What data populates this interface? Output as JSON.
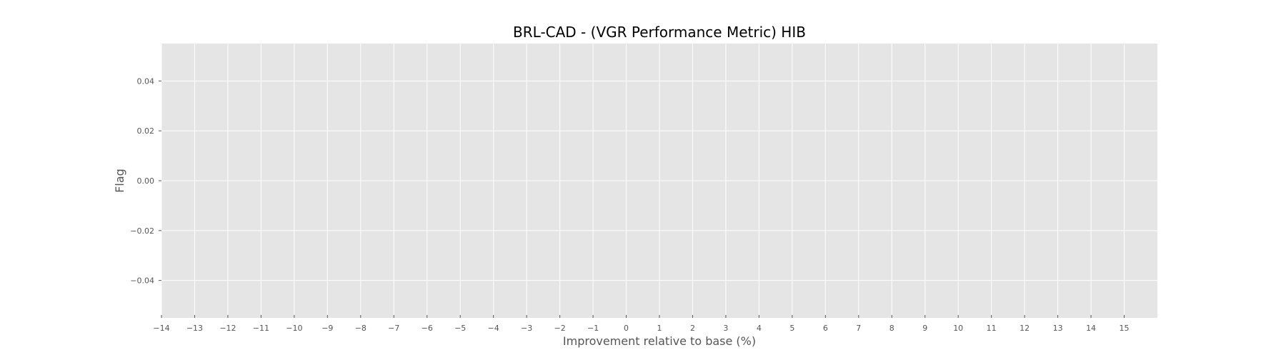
{
  "chart_data": {
    "type": "scatter",
    "title": "BRL-CAD -  (VGR Performance Metric) HIB",
    "xlabel": "Improvement relative to base (%)",
    "ylabel": "Flag",
    "xlim": [
      -14,
      16
    ],
    "ylim": [
      -0.055,
      0.055
    ],
    "x_ticks": [
      -14,
      -13,
      -12,
      -11,
      -10,
      -9,
      -8,
      -7,
      -6,
      -5,
      -4,
      -3,
      -2,
      -1,
      0,
      1,
      2,
      3,
      4,
      5,
      6,
      7,
      8,
      9,
      10,
      11,
      12,
      13,
      14,
      15
    ],
    "x_tick_labels": [
      "−14",
      "−13",
      "−12",
      "−11",
      "−10",
      "−9",
      "−8",
      "−7",
      "−6",
      "−5",
      "−4",
      "−3",
      "−2",
      "−1",
      "0",
      "1",
      "2",
      "3",
      "4",
      "5",
      "6",
      "7",
      "8",
      "9",
      "10",
      "11",
      "12",
      "13",
      "14",
      "15"
    ],
    "y_ticks": [
      0.04,
      0.02,
      0.0,
      -0.02,
      -0.04
    ],
    "y_tick_labels": [
      "0.04",
      "0.02",
      "0.00",
      "−0.02",
      "−0.04"
    ],
    "grid": true,
    "series": [],
    "colors": {
      "plot_background": "#e5e5e5",
      "grid": "#ffffff",
      "tick_label": "#555555",
      "title": "#000000"
    }
  }
}
